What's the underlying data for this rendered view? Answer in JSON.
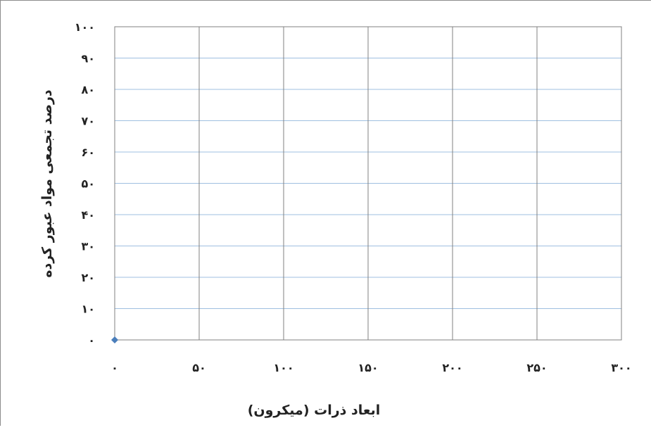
{
  "chart_data": {
    "type": "scatter",
    "title": "",
    "xlabel": "ابعاد ذرات (میکرون)",
    "ylabel": "درصد تجمعی مواد عبور کرده",
    "xlim": [
      0,
      300
    ],
    "ylim": [
      0,
      100
    ],
    "x_ticks": [
      0,
      50,
      100,
      150,
      200,
      250,
      300
    ],
    "x_tick_labels": [
      "۰",
      "۵۰",
      "۱۰۰",
      "۱۵۰",
      "۲۰۰",
      "۲۵۰",
      "۳۰۰"
    ],
    "y_ticks": [
      0,
      10,
      20,
      30,
      40,
      50,
      60,
      70,
      80,
      90,
      100
    ],
    "y_tick_labels": [
      "۰",
      "۱۰",
      "۲۰",
      "۳۰",
      "۴۰",
      "۵۰",
      "۶۰",
      "۷۰",
      "۸۰",
      "۹۰",
      "۱۰۰"
    ],
    "grid": true,
    "series": [
      {
        "points": [
          {
            "x": 0,
            "y": 0
          }
        ],
        "color": "#4a7ebb",
        "marker": "diamond"
      }
    ],
    "colors": {
      "horizontal_grid": "#9fbfe0",
      "vertical_grid": "#808080",
      "plot_border": "#808080"
    }
  }
}
